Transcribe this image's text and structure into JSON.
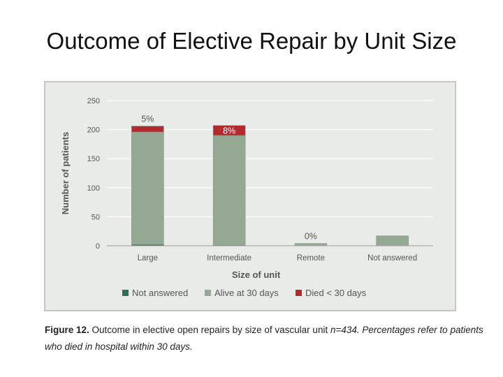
{
  "slide": {
    "title": "Outcome of Elective Repair by Unit Size"
  },
  "caption": {
    "label": "Figure 12.",
    "text_part1": " Outcome in elective open repairs by size of vascular unit ",
    "text_italic": "n=434. Percentages refer to patients who died in hospital within 30 days."
  },
  "colors": {
    "panel_background": "#e9ebe8",
    "not_answered": "#2f6f55",
    "alive_at_30_days": "#94a894",
    "died_lt_30_days": "#b22a2e",
    "gridline": "#ffffff",
    "text": "#555555"
  },
  "chart_data": {
    "type": "bar",
    "stacked": true,
    "title": "",
    "xlabel": "Size of unit",
    "ylabel": "Number of patients",
    "ylim": [
      0,
      250
    ],
    "yticks": [
      0,
      50,
      100,
      150,
      200,
      250
    ],
    "grid": true,
    "legend_position": "bottom",
    "categories": [
      "Large",
      "Intermediate",
      "Remote",
      "Not answered"
    ],
    "series": [
      {
        "name": "Not answered",
        "values": [
          2,
          1,
          0,
          0
        ],
        "color": "#2f6f55"
      },
      {
        "name": "Alive at 30 days",
        "values": [
          194,
          189,
          4,
          17
        ],
        "color": "#94a894"
      },
      {
        "name": "Died < 30 days",
        "values": [
          10,
          17,
          0,
          0
        ],
        "color": "#b22a2e"
      }
    ],
    "bar_labels": [
      "5%",
      "8%",
      "0%",
      ""
    ]
  }
}
